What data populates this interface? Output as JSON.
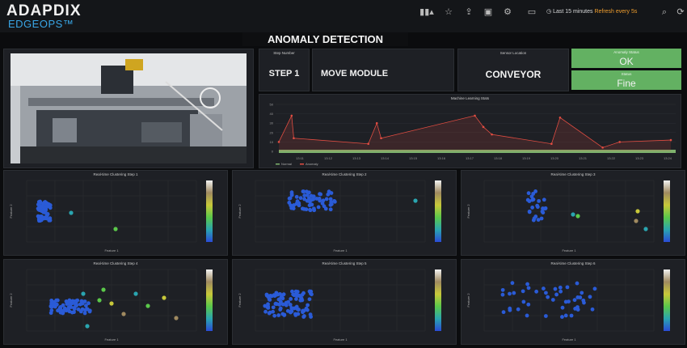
{
  "header": {
    "brand": "ADAPDIX",
    "product": "EDGEOPS™",
    "time_range": "Last 15 minutes",
    "refresh": "Refresh every 5s",
    "icons": [
      "chart-add-icon",
      "star-icon",
      "share-icon",
      "save-icon",
      "gear-icon",
      "monitor-icon",
      "clock-icon",
      "search-icon",
      "refresh-icon"
    ]
  },
  "dashboard_title": "ANOMALY DETECTION",
  "stat_panels": {
    "step_number": {
      "title": "Step Number",
      "value": "STEP 1"
    },
    "step_name": {
      "value": "MOVE MODULE"
    },
    "sensor_location": {
      "title": "Sensor Location",
      "value": "CONVEYOR"
    },
    "anomaly_status": {
      "title": "Anomaly Status",
      "value": "OK",
      "color": "#63b162"
    },
    "status": {
      "title": "Status",
      "value": "Fine",
      "color": "#63b162"
    }
  },
  "line_panel": {
    "title": "Machine Learning Stats",
    "legend": [
      "Normal",
      "Anomaly"
    ],
    "colors": {
      "anomaly": "#e24d42",
      "normal": "#7eb26d"
    },
    "x_ticks": [
      "13:11",
      "13:12",
      "13:13",
      "13:14",
      "13:15",
      "13:16",
      "13:17",
      "13:18",
      "13:19",
      "13:20",
      "13:21",
      "13:22",
      "13:23",
      "13:24"
    ],
    "y_ticks": [
      "50",
      "40",
      "30",
      "20",
      "10",
      "0"
    ]
  },
  "cluster_panels": [
    {
      "title": "Real-time Clustering Step 1",
      "xlabel": "Feature 1",
      "ylabel": "Feature 2"
    },
    {
      "title": "Real-time Clustering Step 2",
      "xlabel": "Feature 1",
      "ylabel": "Feature 2"
    },
    {
      "title": "Real-time Clustering Step 3",
      "xlabel": "Feature 1",
      "ylabel": "Feature 2"
    },
    {
      "title": "Real-time Clustering Step 4",
      "xlabel": "Feature 1",
      "ylabel": "Feature 2"
    },
    {
      "title": "Real-time Clustering Step 5",
      "xlabel": "Feature 1",
      "ylabel": "Feature 2"
    },
    {
      "title": "Real-time Clustering Step 6",
      "xlabel": "Feature 1",
      "ylabel": "Feature 2"
    }
  ],
  "cluster_colors": {
    "normal": "#2a5bd7",
    "scale": [
      "#2a4bd7",
      "#2aa5b0",
      "#5bc84a",
      "#c8c83a",
      "#a08a60",
      "#f2f2f2"
    ]
  },
  "chart_data": [
    {
      "type": "line",
      "title": "Machine Learning Stats",
      "series": [
        {
          "name": "Anomaly",
          "x": [
            0,
            0.3,
            0.35,
            2.1,
            2.3,
            2.4,
            4.6,
            4.8,
            5.0,
            6.4,
            6.6,
            7.6,
            8.0,
            9.2
          ],
          "y": [
            10,
            38,
            14,
            8,
            30,
            14,
            38,
            26,
            18,
            8,
            36,
            4,
            10,
            12
          ]
        },
        {
          "name": "Normal",
          "x": [
            0,
            9.2
          ],
          "y": [
            0,
            0
          ]
        }
      ]
    },
    {
      "type": "scatter",
      "title": "Real-time Clustering Step 1"
    },
    {
      "type": "scatter",
      "title": "Real-time Clustering Step 2"
    },
    {
      "type": "scatter",
      "title": "Real-time Clustering Step 3"
    },
    {
      "type": "scatter",
      "title": "Real-time Clustering Step 4"
    },
    {
      "type": "scatter",
      "title": "Real-time Clustering Step 5"
    },
    {
      "type": "scatter",
      "title": "Real-time Clustering Step 6"
    }
  ]
}
